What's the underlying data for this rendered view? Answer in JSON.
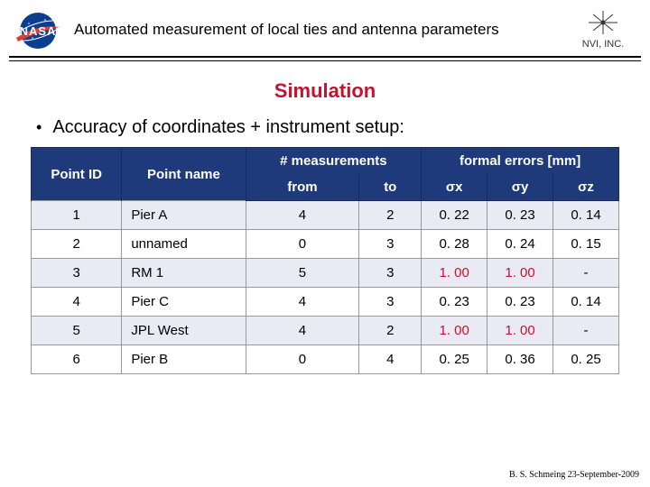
{
  "header": {
    "title": "Automated measurement of local ties and antenna parameters",
    "nasa_label": "NASA",
    "nvi_label": "NVI, INC."
  },
  "section_title": "Simulation",
  "section_title_color": "#c4122f",
  "bullet_text": "Accuracy of coordinates + instrument setup:",
  "table": {
    "header_bg": "#1f3a7a",
    "row_even_bg": "#eaeaf5",
    "row_odd_bg": "#ffffff",
    "col_point_id": "Point ID",
    "col_point_name": "Point name",
    "col_measurements": "# measurements",
    "col_meas_from": "from",
    "col_meas_to": "to",
    "col_formal_errors": "formal errors [mm]",
    "col_sx": "σx",
    "col_sy": "σy",
    "col_sz": "σz",
    "rows": [
      {
        "id": "1",
        "name": "Pier A",
        "from": "4",
        "to": "2",
        "sx": "0. 22",
        "sy": "0. 23",
        "sz": "0. 14"
      },
      {
        "id": "2",
        "name": "unnamed",
        "from": "0",
        "to": "3",
        "sx": "0. 28",
        "sy": "0. 24",
        "sz": "0. 15"
      },
      {
        "id": "3",
        "name": "RM 1",
        "from": "5",
        "to": "3",
        "sx": "1. 00",
        "sy": "1. 00",
        "sz": "-"
      },
      {
        "id": "4",
        "name": "Pier C",
        "from": "4",
        "to": "3",
        "sx": "0. 23",
        "sy": "0. 23",
        "sz": "0. 14"
      },
      {
        "id": "5",
        "name": "JPL West",
        "from": "4",
        "to": "2",
        "sx": "1. 00",
        "sy": "1. 00",
        "sz": "-"
      },
      {
        "id": "6",
        "name": "Pier B",
        "from": "0",
        "to": "4",
        "sx": "0. 25",
        "sy": "0. 36",
        "sz": "0. 25"
      }
    ],
    "highlight_color": "#c4122f",
    "highlight_cells": [
      [
        2,
        3
      ],
      [
        2,
        4
      ],
      [
        4,
        3
      ],
      [
        4,
        4
      ]
    ]
  },
  "footer": "B. S. Schmeing  23-September-2009"
}
